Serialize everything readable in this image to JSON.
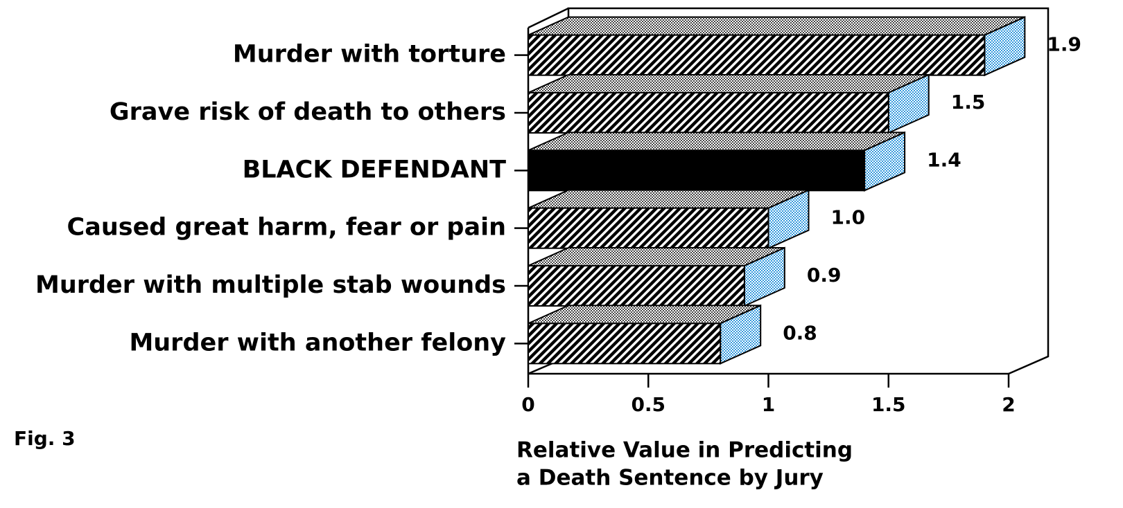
{
  "chart_data": {
    "type": "bar3d_horizontal",
    "categories": [
      "Murder with torture",
      "Grave risk of death to others",
      "BLACK DEFENDANT",
      "Caused great harm, fear or pain",
      "Murder with multiple stab wounds",
      "Murder with another felony"
    ],
    "values": [
      1.9,
      1.5,
      1.4,
      1.0,
      0.9,
      0.8
    ],
    "value_labels": [
      "1.9",
      "1.5",
      "1.4",
      "1.0",
      "0.9",
      "0.8"
    ],
    "patterns": [
      "hatch",
      "hatch",
      "solid",
      "hatch",
      "hatch",
      "hatch"
    ],
    "color": "#000000",
    "xlim": [
      0,
      2
    ],
    "xticks": [
      0,
      0.5,
      1,
      1.5,
      2
    ],
    "xlabel": [
      "Relative Value in Predicting",
      "a Death Sentence by Jury"
    ],
    "annotation": "Fig. 3"
  }
}
